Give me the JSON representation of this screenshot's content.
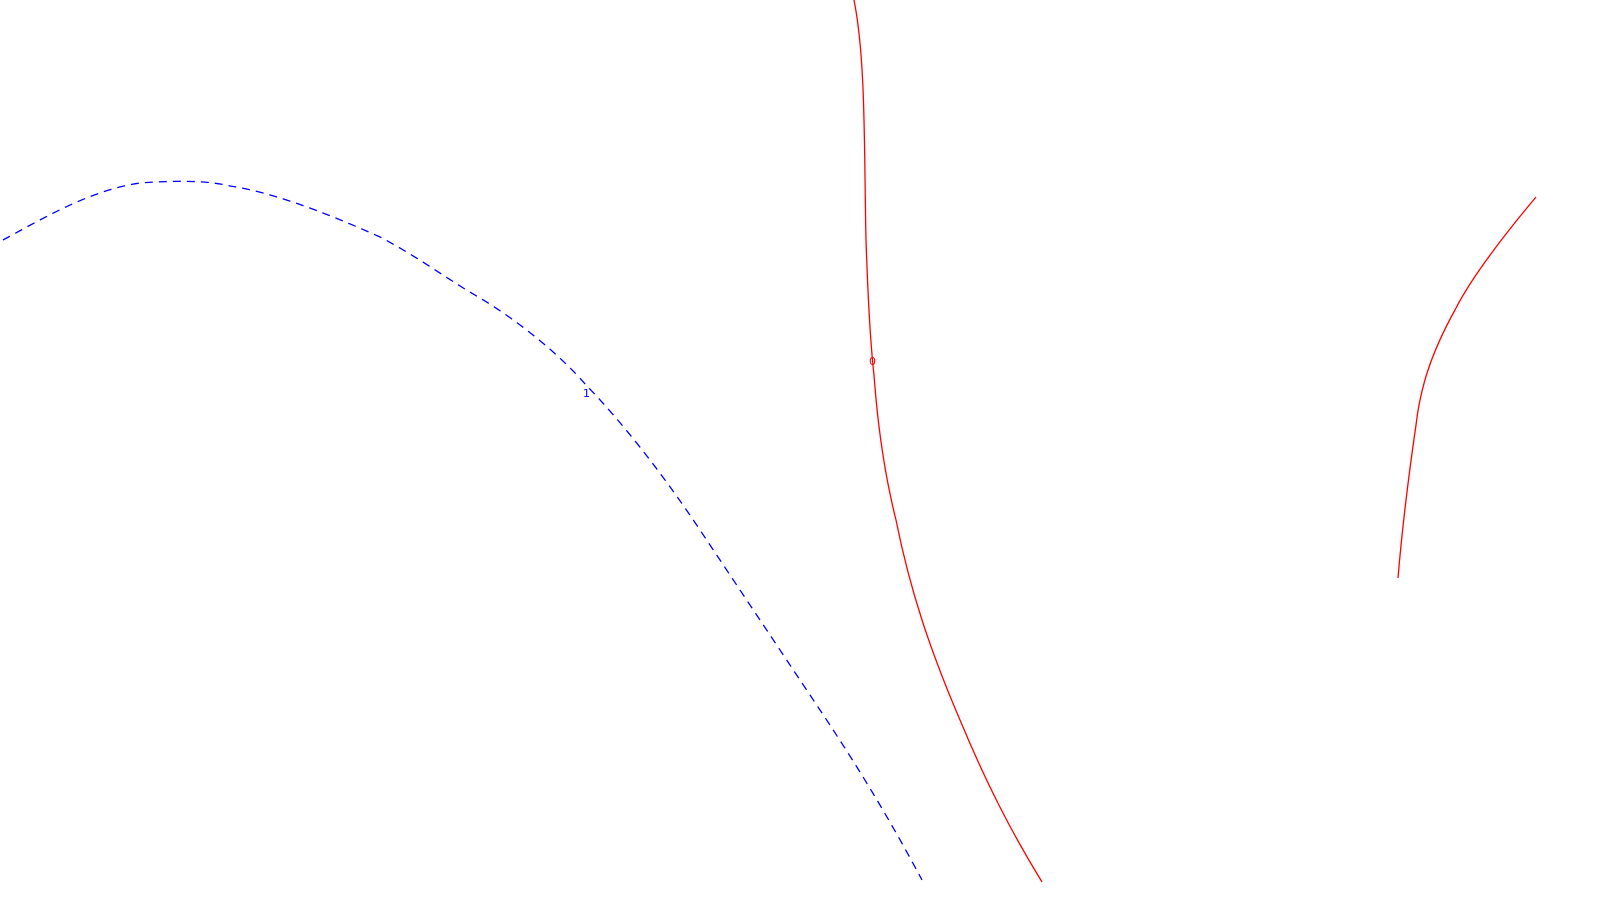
{
  "colors": {
    "background": "#ffffff",
    "red_curve": "#ff0000",
    "blue_curve": "#0000ff"
  },
  "curves": {
    "red_main": {
      "style": "solid",
      "label": "0"
    },
    "red_right": {
      "style": "solid"
    },
    "blue_dashed": {
      "style": "dashed",
      "label": "1"
    }
  }
}
